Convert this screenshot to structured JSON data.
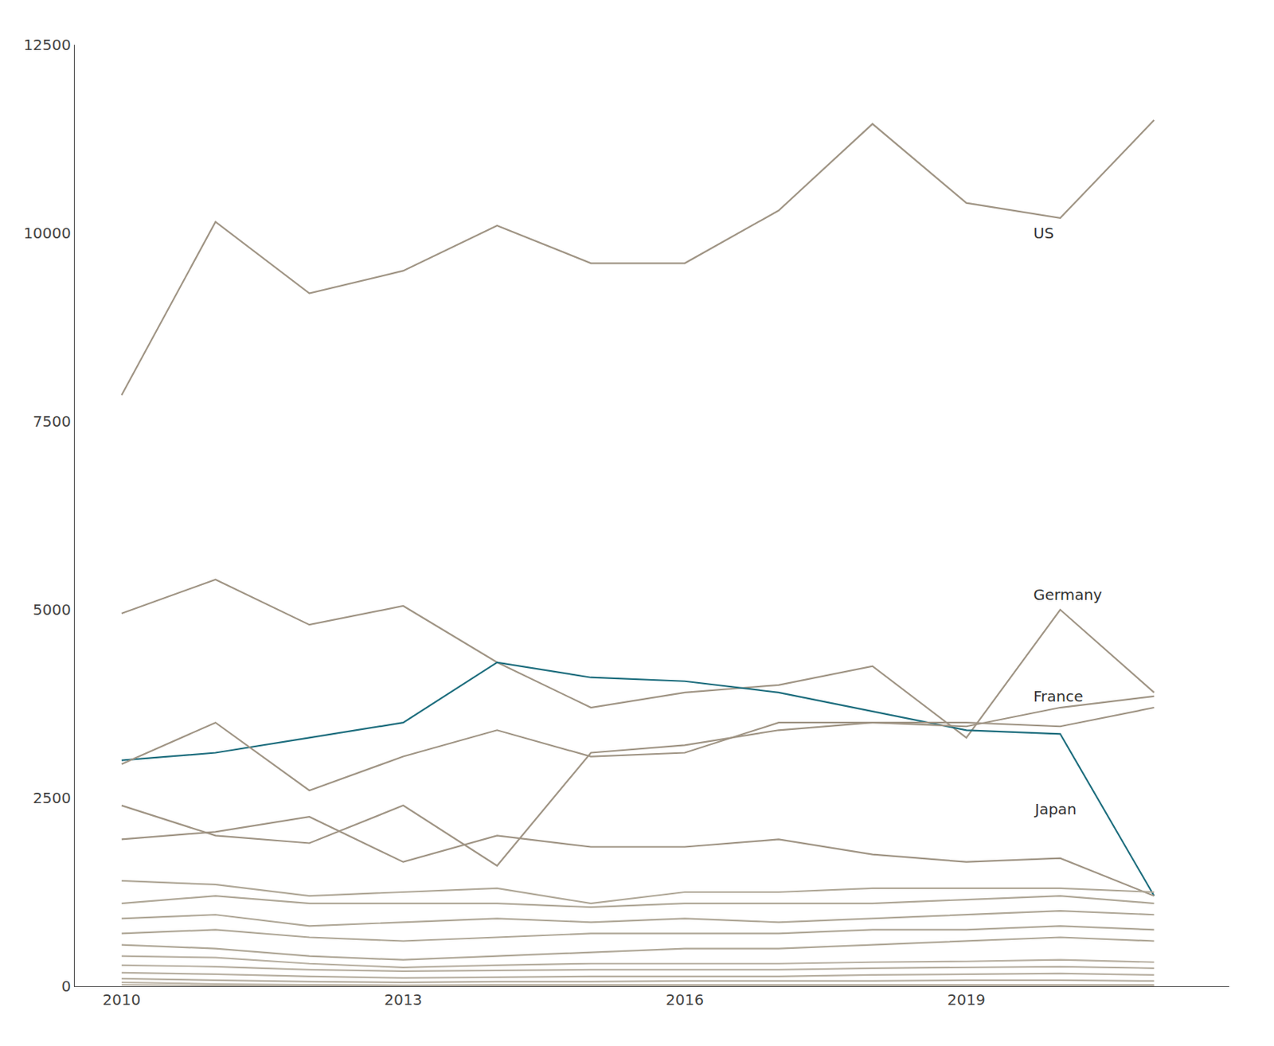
{
  "chart_data": {
    "type": "line",
    "x": [
      2010,
      2011,
      2012,
      2013,
      2014,
      2015,
      2016,
      2017,
      2018,
      2019,
      2020,
      2021
    ],
    "series": [
      {
        "name": "US",
        "color": "#a09585",
        "values": [
          7850,
          10150,
          9200,
          9500,
          10100,
          9600,
          9600,
          10300,
          11450,
          10400,
          10200,
          11500
        ]
      },
      {
        "name": "Germany",
        "color": "#a09585",
        "values": [
          4950,
          5400,
          4800,
          5050,
          4300,
          3700,
          3900,
          4000,
          4250,
          3300,
          5000,
          3900
        ]
      },
      {
        "name": "France",
        "color": "#1e6e7e",
        "values": [
          3000,
          3100,
          3300,
          3500,
          4300,
          4100,
          4050,
          3900,
          3650,
          3400,
          3350,
          1200
        ]
      },
      {
        "name": "Japan",
        "color": "#a09585",
        "values": [
          1950,
          2050,
          2250,
          1650,
          2000,
          1850,
          1850,
          1950,
          1750,
          1650,
          1700,
          1200
        ]
      },
      {
        "color": "#a09585",
        "values": [
          2950,
          3500,
          2600,
          3050,
          3400,
          3050,
          3100,
          3500,
          3500,
          3450,
          3700,
          3850
        ]
      },
      {
        "color": "#a09585",
        "values": [
          2400,
          2000,
          1900,
          2400,
          1600,
          3100,
          3200,
          3400,
          3500,
          3500,
          3450,
          3700
        ]
      },
      {
        "color": "#b0a898",
        "values": [
          1400,
          1350,
          1200,
          1250,
          1300,
          1100,
          1250,
          1250,
          1300,
          1300,
          1300,
          1250
        ]
      },
      {
        "color": "#b0a898",
        "values": [
          1100,
          1200,
          1100,
          1100,
          1100,
          1050,
          1100,
          1100,
          1100,
          1150,
          1200,
          1100
        ]
      },
      {
        "color": "#b0a898",
        "values": [
          900,
          950,
          800,
          850,
          900,
          850,
          900,
          850,
          900,
          950,
          1000,
          950
        ]
      },
      {
        "color": "#b0a898",
        "values": [
          700,
          750,
          650,
          600,
          650,
          700,
          700,
          700,
          750,
          750,
          800,
          750
        ]
      },
      {
        "color": "#b0a898",
        "values": [
          550,
          500,
          400,
          350,
          400,
          450,
          500,
          500,
          550,
          600,
          650,
          600
        ]
      },
      {
        "color": "#b8b0a2",
        "values": [
          400,
          380,
          300,
          250,
          280,
          300,
          300,
          300,
          320,
          330,
          350,
          320
        ]
      },
      {
        "color": "#b8b0a2",
        "values": [
          280,
          260,
          220,
          200,
          210,
          220,
          220,
          220,
          240,
          250,
          260,
          240
        ]
      },
      {
        "color": "#b8b0a2",
        "values": [
          180,
          160,
          130,
          110,
          120,
          130,
          130,
          130,
          150,
          160,
          170,
          150
        ]
      },
      {
        "color": "#b8b0a2",
        "values": [
          100,
          80,
          60,
          50,
          60,
          60,
          70,
          70,
          70,
          80,
          80,
          70
        ]
      },
      {
        "color": "#c0b8aa",
        "values": [
          50,
          30,
          20,
          15,
          20,
          20,
          20,
          20,
          25,
          25,
          25,
          20
        ]
      },
      {
        "color": "#c0b8aa",
        "values": [
          20,
          10,
          8,
          5,
          8,
          8,
          8,
          8,
          10,
          10,
          10,
          8
        ]
      }
    ],
    "annotations": [
      {
        "text": "US",
        "x": 2019.7,
        "y": 10000
      },
      {
        "text": "Germany",
        "x": 2019.7,
        "y": 5200
      },
      {
        "text": "France",
        "x": 2019.7,
        "y": 3850
      },
      {
        "text": "Japan",
        "x": 2019.7,
        "y": 2350
      }
    ],
    "xlim": [
      2009.5,
      2021.8
    ],
    "ylim": [
      0,
      12500
    ],
    "xticks": [
      2010,
      2013,
      2016,
      2019
    ],
    "yticks": [
      0,
      2500,
      5000,
      7500,
      10000,
      12500
    ],
    "grid": false
  }
}
